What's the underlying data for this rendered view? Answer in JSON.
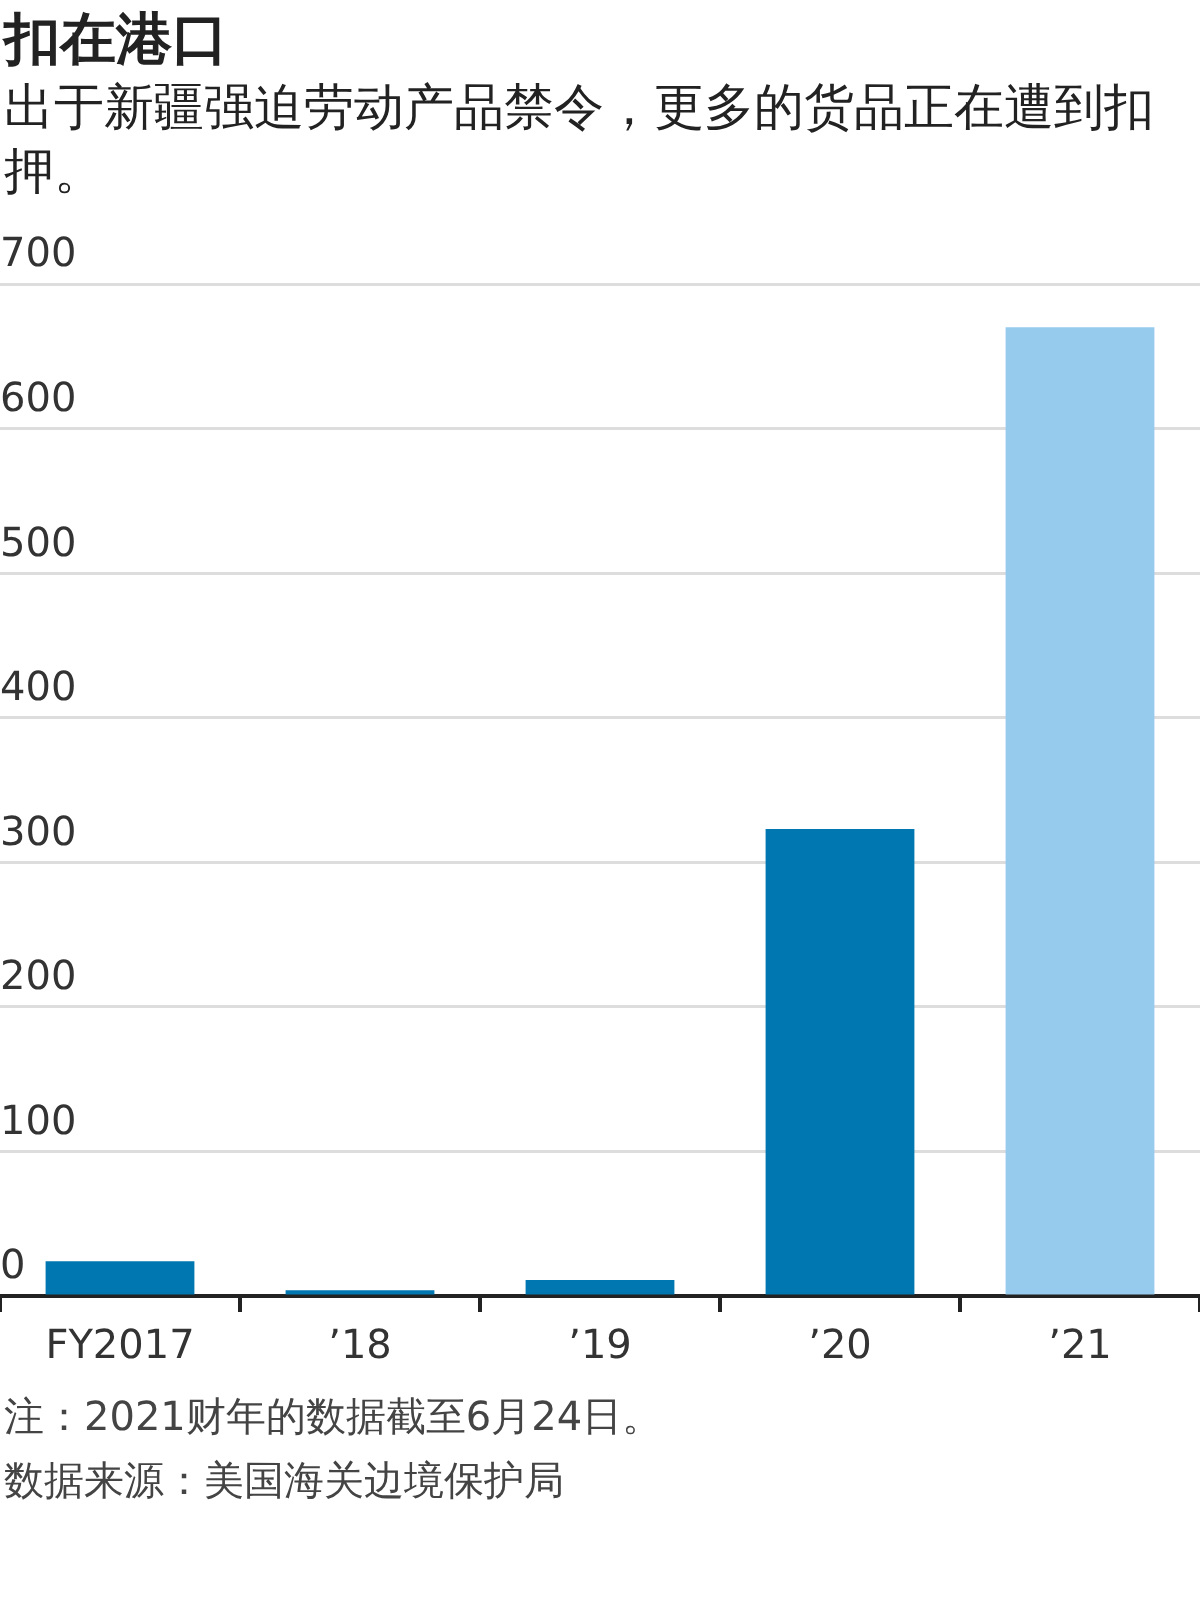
{
  "chart_data": {
    "type": "bar",
    "title": "扣在港口",
    "subtitle": "出于新疆强迫劳动产品禁令，更多的货品正在遭到扣押。",
    "categories": [
      "FY2017",
      "’18",
      "’19",
      "’20",
      "’21"
    ],
    "values": [
      24,
      4,
      11,
      323,
      670
    ],
    "colors": [
      "#0077b0",
      "#0077b0",
      "#0077b0",
      "#0077b0",
      "#97cbee"
    ],
    "ylim": [
      0,
      700
    ],
    "yticks": [
      0,
      100,
      200,
      300,
      400,
      500,
      600,
      700
    ],
    "grid": "y",
    "annotations": [
      "注：2021财年的数据截至6月24日。",
      "数据来源：美国海关边境保护局"
    ]
  }
}
